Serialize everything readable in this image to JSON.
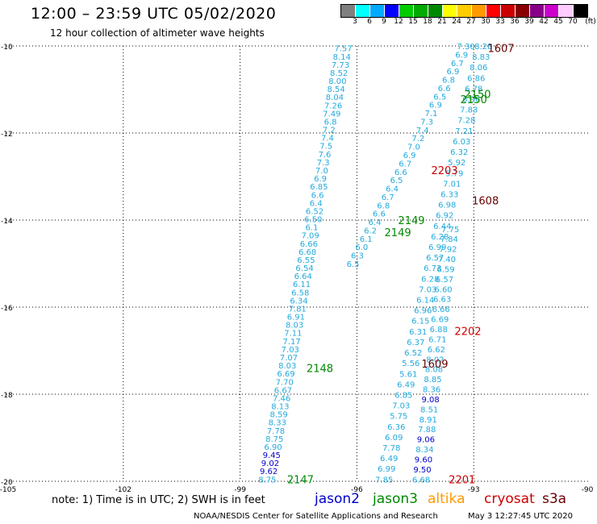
{
  "header": {
    "title": "12:00 – 23:59 UTC 05/02/2020",
    "subtitle": "12 hour collection of altimeter wave heights"
  },
  "legend": {
    "colors": [
      "#7f7f7f",
      "#00ffff",
      "#00aaff",
      "#0000ff",
      "#00cc00",
      "#00aa00",
      "#008800",
      "#ffff00",
      "#ffcc00",
      "#ff9900",
      "#ff0000",
      "#cc0000",
      "#880000",
      "#880088",
      "#cc00cc",
      "#ffccff",
      "#000000"
    ],
    "labels": [
      "3",
      "6",
      "9",
      "12",
      "15",
      "18",
      "21",
      "24",
      "27",
      "30",
      "33",
      "36",
      "39",
      "42",
      "45",
      "70"
    ],
    "unit": "(ft)"
  },
  "footer": {
    "note": "note:  1) Time is in UTC;  2) SWH is in feet",
    "satellites": [
      {
        "name": "jason2",
        "color": "#0000cc"
      },
      {
        "name": "jason3",
        "color": "#008800"
      },
      {
        "name": "altika",
        "color": "#ff9900"
      },
      {
        "name": "cryosat",
        "color": "#cc0000"
      },
      {
        "name": "s3a",
        "color": "#660000"
      }
    ],
    "credit": "NOAA/NESDIS Center for Satellite Applications and Research",
    "issued": "May  3 12:27:45 UTC 2020"
  },
  "chart_data": {
    "type": "scatter",
    "xlim": [
      -105,
      -90
    ],
    "ylim": [
      -20,
      -10
    ],
    "x_ticks": [
      -105,
      -102,
      -99,
      -96,
      -93,
      -90
    ],
    "y_ticks": [
      -10,
      -12,
      -14,
      -16,
      -18,
      -20
    ],
    "grid": true,
    "tracks": [
      {
        "id": "track-a",
        "start": [
          -96.35,
          -10.05
        ],
        "end": [
          -98.3,
          -19.95
        ],
        "color": "#22aadd",
        "values": [
          "7.57",
          "8.14",
          "7.73",
          "8.52",
          "8.00",
          "8.54",
          "8.04",
          "7.26",
          "7.49",
          "6.8",
          "7.2",
          "7.4",
          "7.5",
          "7.6",
          "7.3",
          "7.0",
          "6.9",
          "6.85",
          "6.6",
          "6.4",
          "6.52",
          "6.50",
          "6.1",
          "7.09",
          "6.66",
          "6.68",
          "6.55",
          "6.54",
          "6.64",
          "6.11",
          "6.58",
          "6.34",
          "7.81",
          "6.91",
          "8.03",
          "7.11",
          "7.17",
          "7.03",
          "7.07",
          "8.03",
          "6.69",
          "7.70",
          "6.67",
          "7.46",
          "8.13",
          "8.59",
          "8.33",
          "7.78",
          "8.75",
          "6.90",
          "9.45",
          "9.02",
          "9.62",
          "8.75"
        ]
      },
      {
        "id": "track-b",
        "start": [
          -93.2,
          -10.0
        ],
        "end": [
          -96.1,
          -15.0
        ],
        "color": "#22aadd",
        "values": [
          "7.30",
          "6.9",
          "6.7",
          "6.9",
          "6.8",
          "6.6",
          "6.5",
          "6.9",
          "7.1",
          "7.3",
          "7.4",
          "7.2",
          "7.0",
          "6.9",
          "6.7",
          "6.6",
          "6.5",
          "6.4",
          "6.7",
          "6.8",
          "6.6",
          "6.4",
          "6.2",
          "6.1",
          "6.0",
          "6.3",
          "6.5"
        ]
      },
      {
        "id": "track-c",
        "start": [
          -92.75,
          -10.0
        ],
        "end": [
          -95.3,
          -19.95
        ],
        "color": "#22aadd",
        "values": [
          "8.28",
          "8.83",
          "8.06",
          "6.86",
          "6.78",
          "6.96",
          "7.83",
          "7.28",
          "7.21",
          "6.03",
          "6.32",
          "5.92",
          "5.79",
          "7.01",
          "6.33",
          "6.98",
          "6.92",
          "6.44",
          "6.28",
          "6.99",
          "6.57",
          "6.73",
          "6.28",
          "7.03",
          "6.14",
          "6.96",
          "6.15",
          "6.31",
          "6.37",
          "6.52",
          "5.56",
          "5.61",
          "6.49",
          "6.85",
          "7.03",
          "5.75",
          "6.36",
          "6.09",
          "7.78",
          "6.49",
          "6.99",
          "7.85"
        ]
      },
      {
        "id": "track-d",
        "start": [
          -93.6,
          -14.2
        ],
        "end": [
          -94.35,
          -19.95
        ],
        "color": "#22aadd",
        "values": [
          "7.75",
          "7.84",
          "7.92",
          "7.40",
          "6.59",
          "6.57",
          "6.60",
          "6.63",
          "6.66",
          "6.69",
          "6.88",
          "6.71",
          "6.62",
          "8.02",
          "8.08",
          "8.85",
          "8.36",
          "9.08",
          "8.51",
          "8.91",
          "7.88",
          "9.06",
          "8.34",
          "9.60",
          "9.50",
          "6.68"
        ]
      }
    ],
    "pass_labels": [
      {
        "text": "1607",
        "x": -92.3,
        "y": -10.05,
        "color": "#660000"
      },
      {
        "text": "2150",
        "x": -92.9,
        "y": -11.1,
        "color": "#008800"
      },
      {
        "text": "2150",
        "x": -93.0,
        "y": -11.22,
        "color": "#008800"
      },
      {
        "text": "2203",
        "x": -93.75,
        "y": -12.85,
        "color": "#cc0000"
      },
      {
        "text": "1608",
        "x": -92.7,
        "y": -13.55,
        "color": "#660000"
      },
      {
        "text": "2149",
        "x": -94.6,
        "y": -14.0,
        "color": "#008800"
      },
      {
        "text": "2149",
        "x": -94.95,
        "y": -14.28,
        "color": "#008800"
      },
      {
        "text": "2202",
        "x": -93.15,
        "y": -16.55,
        "color": "#cc0000"
      },
      {
        "text": "1609",
        "x": -94.0,
        "y": -17.3,
        "color": "#660000"
      },
      {
        "text": "2148",
        "x": -96.95,
        "y": -17.4,
        "color": "#008800"
      },
      {
        "text": "2147",
        "x": -97.45,
        "y": -19.95,
        "color": "#008800"
      },
      {
        "text": "2201",
        "x": -93.3,
        "y": -19.95,
        "color": "#cc0000"
      }
    ]
  }
}
